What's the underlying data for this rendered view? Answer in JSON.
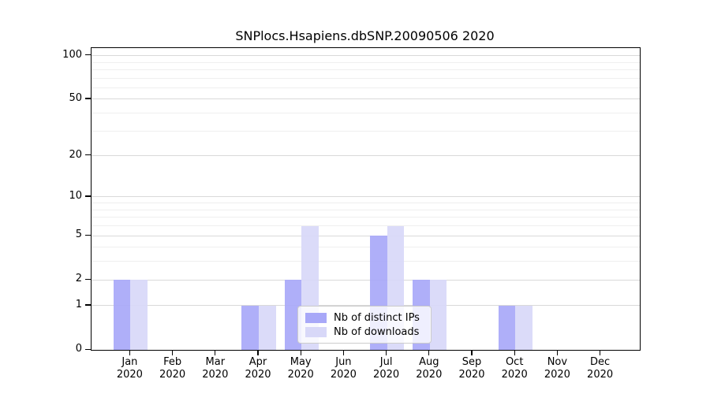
{
  "title": "SNPlocs.Hsapiens.dbSNP.20090506 2020",
  "chart_data": {
    "type": "bar",
    "title": "SNPlocs.Hsapiens.dbSNP.20090506 2020",
    "categories": [
      "Jan 2020",
      "Feb 2020",
      "Mar 2020",
      "Apr 2020",
      "May 2020",
      "Jun 2020",
      "Jul 2020",
      "Aug 2020",
      "Sep 2020",
      "Oct 2020",
      "Nov 2020",
      "Dec 2020"
    ],
    "series": [
      {
        "name": "Nb of distinct IPs",
        "color": "#a8a8f8",
        "values": [
          2,
          0,
          0,
          1,
          2,
          0,
          5,
          2,
          0,
          1,
          0,
          0
        ]
      },
      {
        "name": "Nb of downloads",
        "color": "#d8d8f8",
        "values": [
          2,
          0,
          0,
          1,
          6,
          0,
          6,
          2,
          0,
          1,
          0,
          0
        ]
      }
    ],
    "xlabel": "",
    "ylabel": "",
    "y_axis": {
      "scale": "log10(1+x)",
      "major_ticks": [
        100,
        50,
        20,
        10,
        5,
        2,
        1,
        0
      ],
      "minor_ticks": [
        3,
        4,
        6,
        7,
        8,
        9,
        30,
        40,
        60,
        70,
        80,
        90
      ],
      "range_top_value": 113
    },
    "grid": "horizontal",
    "legend_position": "lower center"
  },
  "colors": {
    "grid_major": "#d9d9d9",
    "grid_minor": "#efefef",
    "axis": "#000000",
    "legend_border": "#cccccc"
  }
}
